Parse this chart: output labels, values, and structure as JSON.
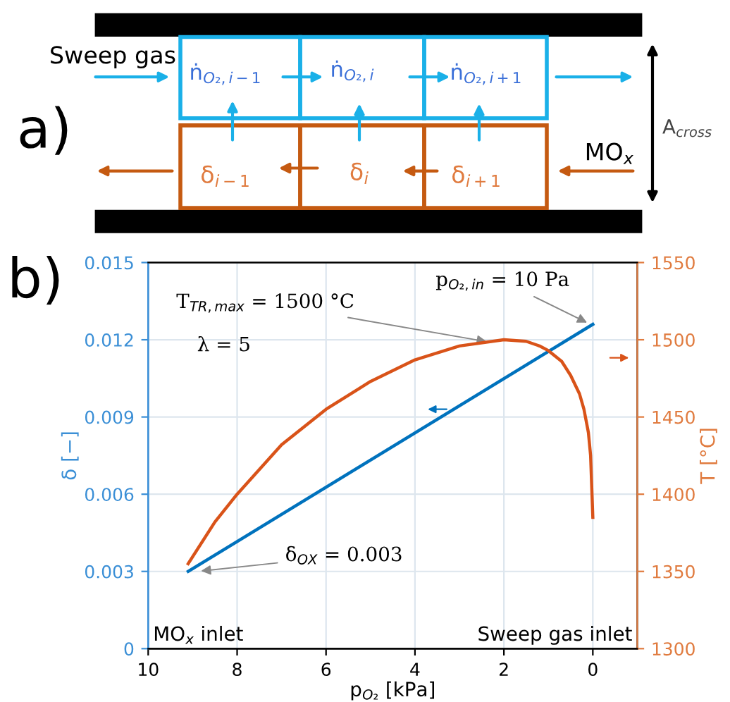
{
  "chart_data": [
    {
      "type": "other",
      "title": "a)",
      "annotations": [
        "Sweep gas",
        "ṅ$_{O₂,i−1}$",
        "ṅ$_{O₂,i}$",
        "ṅ$_{O₂,i+1}$",
        "δ$_{i−1}$",
        "δ$_{i}$",
        "δ$_{i+1}$",
        "MO$_{x}$",
        "A$_{cross}$"
      ]
    },
    {
      "type": "line",
      "title": "b)",
      "xlabel": "p$_{O₂}$ [kPa]",
      "ylabel": "δ [−]",
      "y2label": "T [°C]",
      "xlim": [
        10,
        -1
      ],
      "xticks": [
        10,
        8,
        6,
        4,
        2,
        0
      ],
      "ylim": [
        0,
        0.015
      ],
      "yticks": [
        0,
        0.003,
        0.006,
        0.009,
        0.012,
        0.015
      ],
      "y2lim": [
        1300,
        1550
      ],
      "y2ticks": [
        1300,
        1350,
        1400,
        1450,
        1500,
        1550
      ],
      "grid": true,
      "series": [
        {
          "color": "#0072bd",
          "x": [
            9.1,
            0
          ],
          "values": [
            0.003,
            0.0126
          ]
        },
        {
          "color": "#d95319",
          "axis": "y2",
          "x": [
            9.1,
            8.5,
            8,
            7,
            6,
            5,
            4,
            3,
            2,
            1.5,
            1.2,
            1,
            0.7,
            0.5,
            0.3,
            0.2,
            0.1,
            0.05,
            0
          ],
          "values": [
            1355,
            1382,
            1400,
            1432,
            1455,
            1473,
            1487,
            1496,
            1500,
            1499,
            1496,
            1493,
            1486,
            1477,
            1465,
            1455,
            1440,
            1425,
            1385
          ]
        }
      ],
      "annotations": [
        "λ = 5",
        {
          "text": "T$_{TR,max}$ = 1500 °C",
          "x": 2.3,
          "y": 0.0119
        },
        {
          "text": "p$_{O₂,in}$ = 10 Pa",
          "x": 0.05,
          "y": 0.0126
        },
        {
          "text": "δ$_{OX}$ = 0.003",
          "x": 8.9,
          "y": 0.003
        },
        "MO$_{x}$ inlet",
        "Sweep gas inlet"
      ]
    }
  ]
}
